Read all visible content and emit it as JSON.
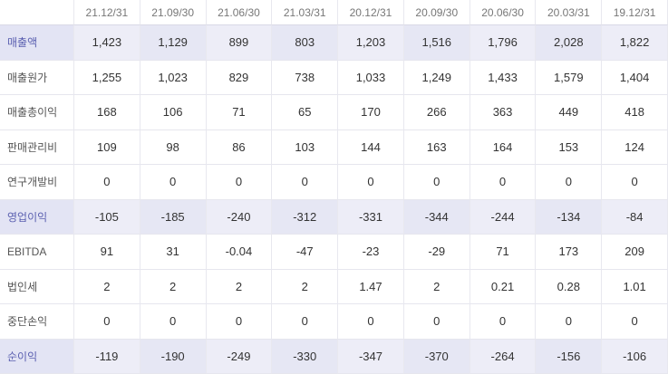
{
  "columns": [
    "21.12/31",
    "21.09/30",
    "21.06/30",
    "21.03/31",
    "20.12/31",
    "20.09/30",
    "20.06/30",
    "20.03/31",
    "19.12/31"
  ],
  "rows": [
    {
      "label": "매출액",
      "highlight": true,
      "values": [
        "1,423",
        "1,129",
        "899",
        "803",
        "1,203",
        "1,516",
        "1,796",
        "2,028",
        "1,822"
      ]
    },
    {
      "label": "매출원가",
      "highlight": false,
      "values": [
        "1,255",
        "1,023",
        "829",
        "738",
        "1,033",
        "1,249",
        "1,433",
        "1,579",
        "1,404"
      ]
    },
    {
      "label": "매출총이익",
      "highlight": false,
      "values": [
        "168",
        "106",
        "71",
        "65",
        "170",
        "266",
        "363",
        "449",
        "418"
      ]
    },
    {
      "label": "판매관리비",
      "highlight": false,
      "values": [
        "109",
        "98",
        "86",
        "103",
        "144",
        "163",
        "164",
        "153",
        "124"
      ]
    },
    {
      "label": "연구개발비",
      "highlight": false,
      "values": [
        "0",
        "0",
        "0",
        "0",
        "0",
        "0",
        "0",
        "0",
        "0"
      ]
    },
    {
      "label": "영업이익",
      "highlight": true,
      "values": [
        "-105",
        "-185",
        "-240",
        "-312",
        "-331",
        "-344",
        "-244",
        "-134",
        "-84"
      ]
    },
    {
      "label": "EBITDA",
      "highlight": false,
      "values": [
        "91",
        "31",
        "-0.04",
        "-47",
        "-23",
        "-29",
        "71",
        "173",
        "209"
      ]
    },
    {
      "label": "법인세",
      "highlight": false,
      "values": [
        "2",
        "2",
        "2",
        "2",
        "1.47",
        "2",
        "0.21",
        "0.28",
        "1.01"
      ]
    },
    {
      "label": "중단손익",
      "highlight": false,
      "values": [
        "0",
        "0",
        "0",
        "0",
        "0",
        "0",
        "0",
        "0",
        "0"
      ]
    },
    {
      "label": "순이익",
      "highlight": true,
      "values": [
        "-119",
        "-190",
        "-249",
        "-330",
        "-347",
        "-370",
        "-264",
        "-156",
        "-106"
      ]
    }
  ],
  "colors": {
    "highlight_row": "#ededf7",
    "highlight_label": "#5a5fb0"
  }
}
